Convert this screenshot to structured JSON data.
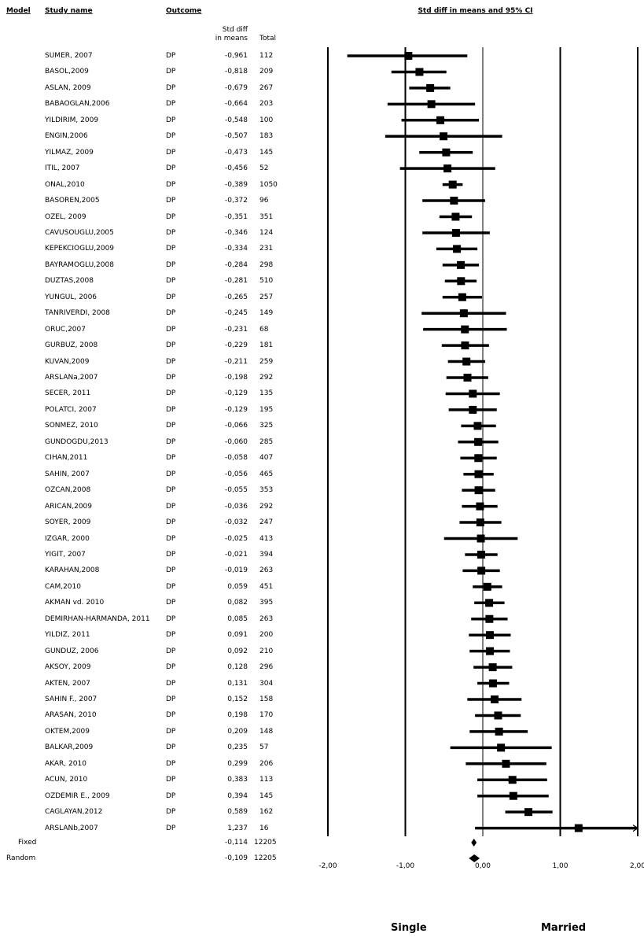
{
  "headers": {
    "model": "Model",
    "study": "Study name",
    "outcome": "Outcome",
    "ci": "Std diff in means and 95% CI",
    "sdm_line1": "Std diff",
    "sdm_line2": "in means",
    "total": "Total"
  },
  "footer": {
    "left": "Single",
    "right": "Married"
  },
  "chart_data": {
    "type": "forest",
    "title": "Std diff in means and 95% CI",
    "xlim": [
      -2,
      2
    ],
    "ticks": [
      "-2,00",
      "-1,00",
      "0,00",
      "1,00",
      "2,00"
    ],
    "tick_values": [
      -2,
      -1,
      0,
      1,
      2
    ],
    "gridlines": [
      -2,
      -1,
      1,
      2
    ],
    "x_category_left": "Single",
    "x_category_right": "Married",
    "studies": [
      {
        "name": "SUMER, 2007",
        "outcome": "DP",
        "smd": -0.961,
        "smd_label": "-0,961",
        "total": "112",
        "lo": -1.75,
        "hi": -0.2
      },
      {
        "name": "BASOL,2009",
        "outcome": "DP",
        "smd": -0.818,
        "smd_label": "-0,818",
        "total": "209",
        "lo": -1.18,
        "hi": -0.47
      },
      {
        "name": "ASLAN, 2009",
        "outcome": "DP",
        "smd": -0.679,
        "smd_label": "-0,679",
        "total": "267",
        "lo": -0.95,
        "hi": -0.42
      },
      {
        "name": "BABAOGLAN,2006",
        "outcome": "DP",
        "smd": -0.664,
        "smd_label": "-0,664",
        "total": "203",
        "lo": -1.23,
        "hi": -0.1
      },
      {
        "name": "YILDIRIM, 2009",
        "outcome": "DP",
        "smd": -0.548,
        "smd_label": "-0,548",
        "total": "100",
        "lo": -1.05,
        "hi": -0.05
      },
      {
        "name": "ENGIN,2006",
        "outcome": "DP",
        "smd": -0.507,
        "smd_label": "-0,507",
        "total": "183",
        "lo": -1.26,
        "hi": 0.25
      },
      {
        "name": "YILMAZ, 2009",
        "outcome": "DP",
        "smd": -0.473,
        "smd_label": "-0,473",
        "total": "145",
        "lo": -0.82,
        "hi": -0.13
      },
      {
        "name": "ITIL, 2007",
        "outcome": "DP",
        "smd": -0.456,
        "smd_label": "-0,456",
        "total": "52",
        "lo": -1.07,
        "hi": 0.16
      },
      {
        "name": "ONAL,2010",
        "outcome": "DP",
        "smd": -0.389,
        "smd_label": "-0,389",
        "total": "1050",
        "lo": -0.52,
        "hi": -0.26
      },
      {
        "name": "BASOREN,2005",
        "outcome": "DP",
        "smd": -0.372,
        "smd_label": "-0,372",
        "total": "96",
        "lo": -0.78,
        "hi": 0.03
      },
      {
        "name": "OZEL, 2009",
        "outcome": "DP",
        "smd": -0.351,
        "smd_label": "-0,351",
        "total": "351",
        "lo": -0.56,
        "hi": -0.14
      },
      {
        "name": "CAVUSOUGLU,2005",
        "outcome": "DP",
        "smd": -0.346,
        "smd_label": "-0,346",
        "total": "124",
        "lo": -0.78,
        "hi": 0.09
      },
      {
        "name": "KEPEKCIOGLU,2009",
        "outcome": "DP",
        "smd": -0.334,
        "smd_label": "-0,334",
        "total": "231",
        "lo": -0.6,
        "hi": -0.07
      },
      {
        "name": "BAYRAMOGLU,2008",
        "outcome": "DP",
        "smd": -0.284,
        "smd_label": "-0,284",
        "total": "298",
        "lo": -0.52,
        "hi": -0.05
      },
      {
        "name": "DUZTAS,2008",
        "outcome": "DP",
        "smd": -0.281,
        "smd_label": "-0,281",
        "total": "510",
        "lo": -0.49,
        "hi": -0.08
      },
      {
        "name": "YUNGUL, 2006",
        "outcome": "DP",
        "smd": -0.265,
        "smd_label": "-0,265",
        "total": "257",
        "lo": -0.52,
        "hi": -0.01
      },
      {
        "name": "TANRIVERDI, 2008",
        "outcome": "DP",
        "smd": -0.245,
        "smd_label": "-0,245",
        "total": "149",
        "lo": -0.79,
        "hi": 0.3
      },
      {
        "name": "ORUC,2007",
        "outcome": "DP",
        "smd": -0.231,
        "smd_label": "-0,231",
        "total": "68",
        "lo": -0.77,
        "hi": 0.31
      },
      {
        "name": "GURBUZ, 2008",
        "outcome": "DP",
        "smd": -0.229,
        "smd_label": "-0,229",
        "total": "181",
        "lo": -0.53,
        "hi": 0.08
      },
      {
        "name": "KUVAN,2009",
        "outcome": "DP",
        "smd": -0.211,
        "smd_label": "-0,211",
        "total": "259",
        "lo": -0.45,
        "hi": 0.03
      },
      {
        "name": "ARSLANa,2007",
        "outcome": "DP",
        "smd": -0.198,
        "smd_label": "-0,198",
        "total": "292",
        "lo": -0.47,
        "hi": 0.07
      },
      {
        "name": "SECER, 2011",
        "outcome": "DP",
        "smd": -0.129,
        "smd_label": "-0,129",
        "total": "135",
        "lo": -0.48,
        "hi": 0.22
      },
      {
        "name": "POLATCI, 2007",
        "outcome": "DP",
        "smd": -0.129,
        "smd_label": "-0,129",
        "total": "195",
        "lo": -0.44,
        "hi": 0.18
      },
      {
        "name": "SONMEZ, 2010",
        "outcome": "DP",
        "smd": -0.066,
        "smd_label": "-0,066",
        "total": "325",
        "lo": -0.28,
        "hi": 0.17
      },
      {
        "name": "GUNDOGDU,2013",
        "outcome": "DP",
        "smd": -0.06,
        "smd_label": "-0,060",
        "total": "285",
        "lo": -0.32,
        "hi": 0.2
      },
      {
        "name": "CIHAN,2011",
        "outcome": "DP",
        "smd": -0.058,
        "smd_label": "-0,058",
        "total": "407",
        "lo": -0.29,
        "hi": 0.18
      },
      {
        "name": "SAHIN, 2007",
        "outcome": "DP",
        "smd": -0.056,
        "smd_label": "-0,056",
        "total": "465",
        "lo": -0.25,
        "hi": 0.14
      },
      {
        "name": "OZCAN,2008",
        "outcome": "DP",
        "smd": -0.055,
        "smd_label": "-0,055",
        "total": "353",
        "lo": -0.27,
        "hi": 0.16
      },
      {
        "name": "ARICAN,2009",
        "outcome": "DP",
        "smd": -0.036,
        "smd_label": "-0,036",
        "total": "292",
        "lo": -0.27,
        "hi": 0.19
      },
      {
        "name": "SOYER, 2009",
        "outcome": "DP",
        "smd": -0.032,
        "smd_label": "-0,032",
        "total": "247",
        "lo": -0.3,
        "hi": 0.24
      },
      {
        "name": "IZGAR, 2000",
        "outcome": "DP",
        "smd": -0.025,
        "smd_label": "-0,025",
        "total": "413",
        "lo": -0.5,
        "hi": 0.45
      },
      {
        "name": "YIGIT, 2007",
        "outcome": "DP",
        "smd": -0.021,
        "smd_label": "-0,021",
        "total": "394",
        "lo": -0.23,
        "hi": 0.19
      },
      {
        "name": "KARAHAN,2008",
        "outcome": "DP",
        "smd": -0.019,
        "smd_label": "-0,019",
        "total": "263",
        "lo": -0.26,
        "hi": 0.22
      },
      {
        "name": "CAM,2010",
        "outcome": "DP",
        "smd": 0.059,
        "smd_label": "0,059",
        "total": "451",
        "lo": -0.13,
        "hi": 0.25
      },
      {
        "name": "AKMAN vd. 2010",
        "outcome": "DP",
        "smd": 0.082,
        "smd_label": "0,082",
        "total": "395",
        "lo": -0.11,
        "hi": 0.28
      },
      {
        "name": "DEMIRHAN-HARMANDA, 2011",
        "outcome": "DP",
        "smd": 0.085,
        "smd_label": "0,085",
        "total": "263",
        "lo": -0.15,
        "hi": 0.32
      },
      {
        "name": "YILDIZ, 2011",
        "outcome": "DP",
        "smd": 0.091,
        "smd_label": "0,091",
        "total": "200",
        "lo": -0.18,
        "hi": 0.36
      },
      {
        "name": "GUNDUZ, 2006",
        "outcome": "DP",
        "smd": 0.092,
        "smd_label": "0,092",
        "total": "210",
        "lo": -0.17,
        "hi": 0.35
      },
      {
        "name": "AKSOY, 2009",
        "outcome": "DP",
        "smd": 0.128,
        "smd_label": "0,128",
        "total": "296",
        "lo": -0.12,
        "hi": 0.38
      },
      {
        "name": "AKTEN, 2007",
        "outcome": "DP",
        "smd": 0.131,
        "smd_label": "0,131",
        "total": "304",
        "lo": -0.07,
        "hi": 0.34
      },
      {
        "name": "SAHIN F., 2007",
        "outcome": "DP",
        "smd": 0.152,
        "smd_label": "0,152",
        "total": "158",
        "lo": -0.2,
        "hi": 0.5
      },
      {
        "name": "ARASAN, 2010",
        "outcome": "DP",
        "smd": 0.198,
        "smd_label": "0,198",
        "total": "170",
        "lo": -0.1,
        "hi": 0.49
      },
      {
        "name": "OKTEM,2009",
        "outcome": "DP",
        "smd": 0.209,
        "smd_label": "0,209",
        "total": "148",
        "lo": -0.17,
        "hi": 0.58
      },
      {
        "name": "BALKAR,2009",
        "outcome": "DP",
        "smd": 0.235,
        "smd_label": "0,235",
        "total": "57",
        "lo": -0.42,
        "hi": 0.89
      },
      {
        "name": "AKAR, 2010",
        "outcome": "DP",
        "smd": 0.299,
        "smd_label": "0,299",
        "total": "206",
        "lo": -0.22,
        "hi": 0.82
      },
      {
        "name": "ACUN, 2010",
        "outcome": "DP",
        "smd": 0.383,
        "smd_label": "0,383",
        "total": "113",
        "lo": -0.07,
        "hi": 0.83
      },
      {
        "name": "OZDEMIR E., 2009",
        "outcome": "DP",
        "smd": 0.394,
        "smd_label": "0,394",
        "total": "145",
        "lo": -0.07,
        "hi": 0.85
      },
      {
        "name": "CAGLAYAN,2012",
        "outcome": "DP",
        "smd": 0.589,
        "smd_label": "0,589",
        "total": "162",
        "lo": 0.29,
        "hi": 0.9
      },
      {
        "name": "ARSLANb,2007",
        "outcome": "DP",
        "smd": 1.237,
        "smd_label": "1,237",
        "total": "16",
        "lo": -0.1,
        "hi": 2.0,
        "arrow_right": true
      }
    ],
    "pooled": [
      {
        "model": "Fixed",
        "smd": -0.114,
        "smd_label": "-0,114",
        "total": "12205",
        "lo": -0.15,
        "hi": -0.08
      },
      {
        "model": "Random",
        "smd": -0.109,
        "smd_label": "-0,109",
        "total": "12205",
        "lo": -0.18,
        "hi": -0.04
      }
    ]
  }
}
